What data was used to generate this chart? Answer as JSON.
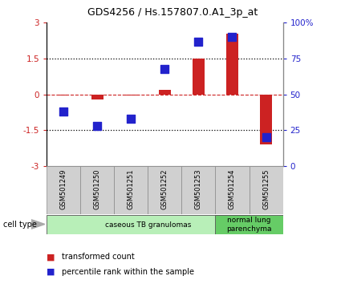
{
  "title": "GDS4256 / Hs.157807.0.A1_3p_at",
  "samples": [
    "GSM501249",
    "GSM501250",
    "GSM501251",
    "GSM501252",
    "GSM501253",
    "GSM501254",
    "GSM501255"
  ],
  "transformed_count": [
    -0.05,
    -0.22,
    -0.05,
    0.18,
    1.5,
    2.55,
    -2.1
  ],
  "percentile_rank": [
    38,
    28,
    33,
    68,
    87,
    90,
    20
  ],
  "ylim_left": [
    -3,
    3
  ],
  "ylim_right": [
    0,
    100
  ],
  "yticks_left": [
    -3,
    -1.5,
    0,
    1.5,
    3
  ],
  "ytick_labels_left": [
    "-3",
    "-1.5",
    "0",
    "1.5",
    "3"
  ],
  "yticks_right": [
    0,
    25,
    50,
    75,
    100
  ],
  "ytick_labels_right": [
    "0",
    "25",
    "50",
    "75",
    "100%"
  ],
  "hlines_dotted": [
    -1.5,
    1.5
  ],
  "hline_red_dashed": 0,
  "bar_color": "#cc2222",
  "dot_color": "#2222cc",
  "cell_type_groups": [
    {
      "label": "caseous TB granulomas",
      "start": 0,
      "end": 5,
      "color": "#b8efb8"
    },
    {
      "label": "normal lung\nparenchyma",
      "start": 5,
      "end": 6,
      "color": "#66cc66"
    }
  ],
  "legend_bar_label": "transformed count",
  "legend_dot_label": "percentile rank within the sample",
  "cell_type_label": "cell type",
  "bg_color": "#ffffff",
  "plot_bg_color": "#ffffff",
  "bar_width": 0.35,
  "dot_size": 45,
  "dot_marker": "s",
  "label_box_color": "#d0d0d0",
  "label_box_edge": "#888888"
}
